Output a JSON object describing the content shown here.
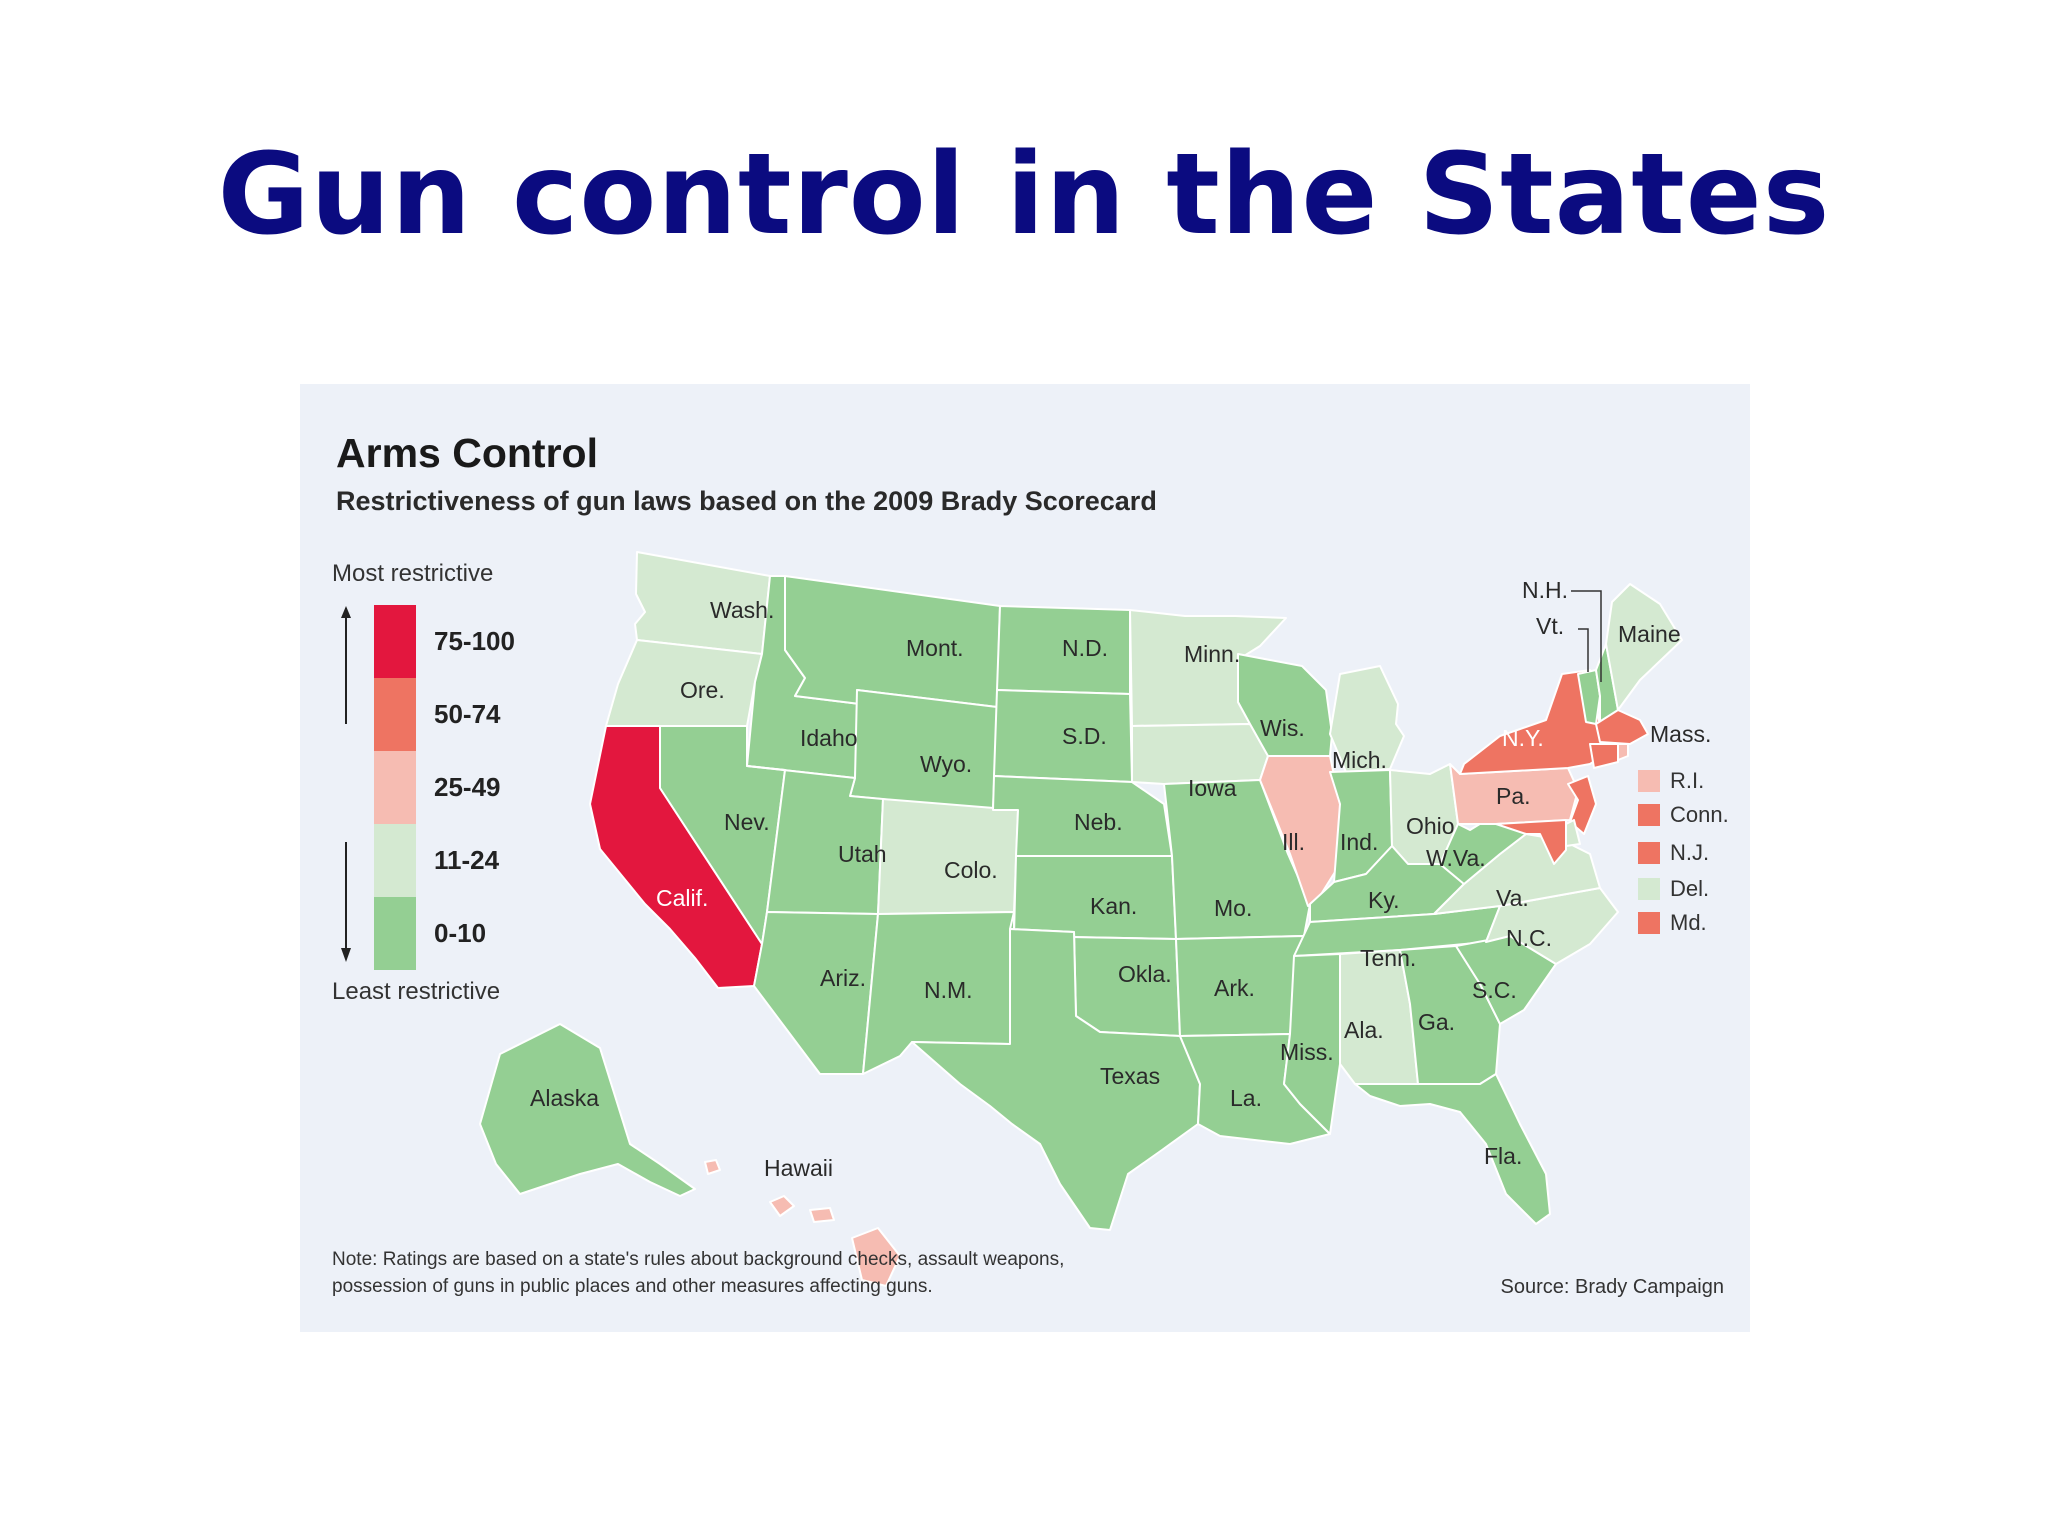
{
  "slide": {
    "title": "Gun control in the  States"
  },
  "figure": {
    "title": "Arms Control",
    "subtitle": "Restrictiveness of gun laws based on the 2009 Brady Scorecard",
    "note_line1": "Note: Ratings are based on a state's rules about background checks, assault weapons,",
    "note_line2": "possession of guns in public places and other measures affecting guns.",
    "source": "Source: Brady Campaign"
  },
  "legend": {
    "top_label": "Most restrictive",
    "bottom_label": "Least restrictive",
    "bins": [
      {
        "label": "75-100",
        "color": "#e3173e"
      },
      {
        "label": "50-74",
        "color": "#ee7462"
      },
      {
        "label": "25-49",
        "color": "#f6bcb2"
      },
      {
        "label": "11-24",
        "color": "#d4e9d1"
      },
      {
        "label": "0-10",
        "color": "#94cf93"
      }
    ]
  },
  "states": [
    {
      "name": "Wash.",
      "bin": "11-24"
    },
    {
      "name": "Ore.",
      "bin": "11-24"
    },
    {
      "name": "Calif.",
      "bin": "75-100"
    },
    {
      "name": "Idaho",
      "bin": "0-10"
    },
    {
      "name": "Nev.",
      "bin": "0-10"
    },
    {
      "name": "Mont.",
      "bin": "0-10"
    },
    {
      "name": "Wyo.",
      "bin": "0-10"
    },
    {
      "name": "Utah",
      "bin": "0-10"
    },
    {
      "name": "Ariz.",
      "bin": "0-10"
    },
    {
      "name": "Colo.",
      "bin": "11-24"
    },
    {
      "name": "N.M.",
      "bin": "0-10"
    },
    {
      "name": "N.D.",
      "bin": "0-10"
    },
    {
      "name": "S.D.",
      "bin": "0-10"
    },
    {
      "name": "Neb.",
      "bin": "0-10"
    },
    {
      "name": "Kan.",
      "bin": "0-10"
    },
    {
      "name": "Okla.",
      "bin": "0-10"
    },
    {
      "name": "Texas",
      "bin": "0-10"
    },
    {
      "name": "Minn.",
      "bin": "11-24"
    },
    {
      "name": "Iowa",
      "bin": "11-24"
    },
    {
      "name": "Mo.",
      "bin": "0-10"
    },
    {
      "name": "Ark.",
      "bin": "0-10"
    },
    {
      "name": "La.",
      "bin": "0-10"
    },
    {
      "name": "Wis.",
      "bin": "0-10"
    },
    {
      "name": "Ill.",
      "bin": "25-49"
    },
    {
      "name": "Mich.",
      "bin": "11-24"
    },
    {
      "name": "Ind.",
      "bin": "0-10"
    },
    {
      "name": "Ohio",
      "bin": "11-24"
    },
    {
      "name": "Ky.",
      "bin": "0-10"
    },
    {
      "name": "Tenn.",
      "bin": "0-10"
    },
    {
      "name": "Miss.",
      "bin": "0-10"
    },
    {
      "name": "Ala.",
      "bin": "11-24"
    },
    {
      "name": "Ga.",
      "bin": "0-10"
    },
    {
      "name": "Fla.",
      "bin": "0-10"
    },
    {
      "name": "S.C.",
      "bin": "0-10"
    },
    {
      "name": "N.C.",
      "bin": "11-24"
    },
    {
      "name": "Va.",
      "bin": "11-24"
    },
    {
      "name": "W.Va.",
      "bin": "0-10"
    },
    {
      "name": "Pa.",
      "bin": "25-49"
    },
    {
      "name": "N.Y.",
      "bin": "50-74"
    },
    {
      "name": "Vt.",
      "bin": "0-10"
    },
    {
      "name": "N.H.",
      "bin": "0-10"
    },
    {
      "name": "Maine",
      "bin": "11-24"
    },
    {
      "name": "Mass.",
      "bin": "50-74"
    },
    {
      "name": "R.I.",
      "bin": "25-49"
    },
    {
      "name": "Conn.",
      "bin": "50-74"
    },
    {
      "name": "N.J.",
      "bin": "50-74"
    },
    {
      "name": "Del.",
      "bin": "11-24"
    },
    {
      "name": "Md.",
      "bin": "50-74"
    },
    {
      "name": "Alaska",
      "bin": "0-10"
    },
    {
      "name": "Hawaii",
      "bin": "25-49"
    }
  ]
}
